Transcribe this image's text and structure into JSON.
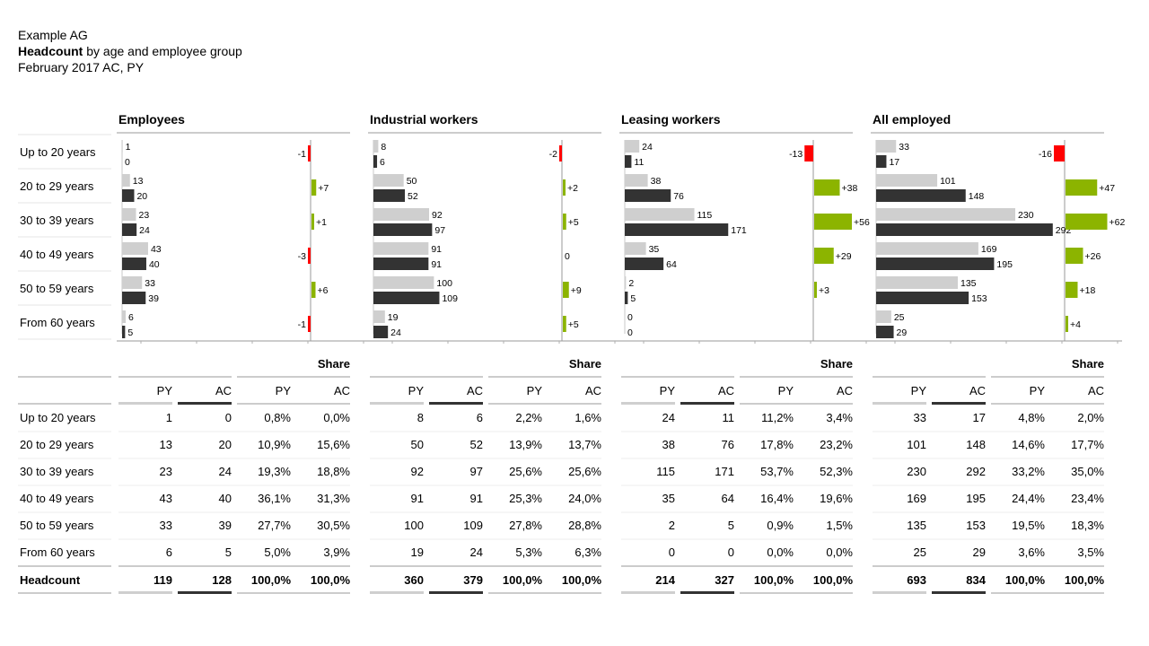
{
  "header": {
    "company": "Example AG",
    "title_bold": "Headcount",
    "title_rest": " by age and employee group",
    "period": "February 2017 AC, PY"
  },
  "row_labels": [
    "Up to 20 years",
    "20 to 29 years",
    "30 to 39 years",
    "40 to 49 years",
    "50 to 59 years",
    "From 60 years"
  ],
  "total_label": "Headcount",
  "table_headers": {
    "share": "Share",
    "py": "PY",
    "ac": "AC"
  },
  "colors": {
    "py": "#cfcfcf",
    "ac": "#333333",
    "positive": "#8cb400",
    "negative": "#ff0000"
  },
  "chart_data": [
    {
      "type": "bar",
      "title": "Employees",
      "categories": [
        "Up to 20 years",
        "20 to 29 years",
        "30 to 39 years",
        "40 to 49 years",
        "50 to 59 years",
        "From 60 years"
      ],
      "series": [
        {
          "name": "PY",
          "values": [
            1,
            13,
            23,
            43,
            33,
            6
          ]
        },
        {
          "name": "AC",
          "values": [
            0,
            20,
            24,
            40,
            39,
            5
          ]
        }
      ],
      "delta": [
        -1,
        7,
        1,
        -3,
        6,
        -1
      ],
      "delta_labels": [
        "-1",
        "+7",
        "+1",
        "-3",
        "+6",
        "-1"
      ]
    },
    {
      "type": "bar",
      "title": "Industrial workers",
      "categories": [
        "Up to 20 years",
        "20 to 29 years",
        "30 to 39 years",
        "40 to 49 years",
        "50 to 59 years",
        "From 60 years"
      ],
      "series": [
        {
          "name": "PY",
          "values": [
            8,
            50,
            92,
            91,
            100,
            19
          ]
        },
        {
          "name": "AC",
          "values": [
            6,
            52,
            97,
            91,
            109,
            24
          ]
        }
      ],
      "delta": [
        -2,
        2,
        5,
        0,
        9,
        5
      ],
      "delta_labels": [
        "-2",
        "+2",
        "+5",
        "0",
        "+9",
        "+5"
      ]
    },
    {
      "type": "bar",
      "title": "Leasing workers",
      "categories": [
        "Up to 20 years",
        "20 to 29 years",
        "30 to 39 years",
        "40 to 49 years",
        "50 to 59 years",
        "From 60 years"
      ],
      "series": [
        {
          "name": "PY",
          "values": [
            24,
            38,
            115,
            35,
            2,
            0
          ]
        },
        {
          "name": "AC",
          "values": [
            11,
            76,
            171,
            64,
            5,
            0
          ]
        }
      ],
      "delta": [
        -13,
        38,
        56,
        29,
        3,
        0
      ],
      "delta_labels": [
        "-13",
        "+38",
        "+56",
        "+29",
        "+3",
        ""
      ]
    },
    {
      "type": "bar",
      "title": "All employed",
      "categories": [
        "Up to 20 years",
        "20 to 29 years",
        "30 to 39 years",
        "40 to 49 years",
        "50 to 59 years",
        "From 60 years"
      ],
      "series": [
        {
          "name": "PY",
          "values": [
            33,
            101,
            230,
            169,
            135,
            25
          ]
        },
        {
          "name": "AC",
          "values": [
            17,
            148,
            292,
            195,
            153,
            29
          ]
        }
      ],
      "delta": [
        -16,
        47,
        62,
        26,
        18,
        4
      ],
      "delta_labels": [
        "-16",
        "+47",
        "+62",
        "+26",
        "+18",
        "+4"
      ]
    }
  ],
  "table": [
    {
      "rows": [
        [
          "1",
          "0",
          "0,8%",
          "0,0%"
        ],
        [
          "13",
          "20",
          "10,9%",
          "15,6%"
        ],
        [
          "23",
          "24",
          "19,3%",
          "18,8%"
        ],
        [
          "43",
          "40",
          "36,1%",
          "31,3%"
        ],
        [
          "33",
          "39",
          "27,7%",
          "30,5%"
        ],
        [
          "6",
          "5",
          "5,0%",
          "3,9%"
        ]
      ],
      "total": [
        "119",
        "128",
        "100,0%",
        "100,0%"
      ]
    },
    {
      "rows": [
        [
          "8",
          "6",
          "2,2%",
          "1,6%"
        ],
        [
          "50",
          "52",
          "13,9%",
          "13,7%"
        ],
        [
          "92",
          "97",
          "25,6%",
          "25,6%"
        ],
        [
          "91",
          "91",
          "25,3%",
          "24,0%"
        ],
        [
          "100",
          "109",
          "27,8%",
          "28,8%"
        ],
        [
          "19",
          "24",
          "5,3%",
          "6,3%"
        ]
      ],
      "total": [
        "360",
        "379",
        "100,0%",
        "100,0%"
      ]
    },
    {
      "rows": [
        [
          "24",
          "11",
          "11,2%",
          "3,4%"
        ],
        [
          "38",
          "76",
          "17,8%",
          "23,2%"
        ],
        [
          "115",
          "171",
          "53,7%",
          "52,3%"
        ],
        [
          "35",
          "64",
          "16,4%",
          "19,6%"
        ],
        [
          "2",
          "5",
          "0,9%",
          "1,5%"
        ],
        [
          "0",
          "0",
          "0,0%",
          "0,0%"
        ]
      ],
      "total": [
        "214",
        "327",
        "100,0%",
        "100,0%"
      ]
    },
    {
      "rows": [
        [
          "33",
          "17",
          "4,8%",
          "2,0%"
        ],
        [
          "101",
          "148",
          "14,6%",
          "17,7%"
        ],
        [
          "230",
          "292",
          "33,2%",
          "35,0%"
        ],
        [
          "169",
          "195",
          "24,4%",
          "23,4%"
        ],
        [
          "135",
          "153",
          "19,5%",
          "18,3%"
        ],
        [
          "25",
          "29",
          "3,6%",
          "3,5%"
        ]
      ],
      "total": [
        "693",
        "834",
        "100,0%",
        "100,0%"
      ]
    }
  ]
}
